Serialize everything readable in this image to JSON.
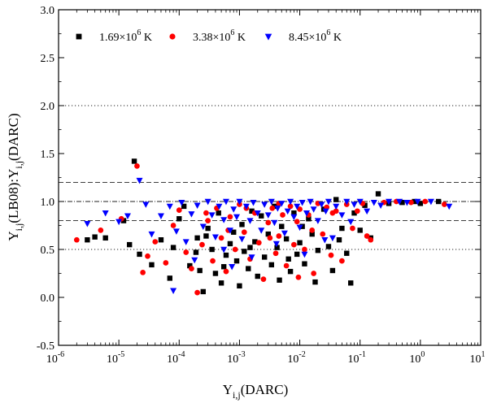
{
  "chart_data": {
    "type": "scatter",
    "x_scale": "log",
    "y_scale": "linear",
    "xlim": [
      1e-06,
      10
    ],
    "ylim": [
      -0.5,
      3.0
    ],
    "xlabel": {
      "main": "Υ",
      "sub": "i,j",
      "tail": "(DARC)"
    },
    "ylabel": {
      "a": "Υ",
      "a_sub": "i,j",
      "b": "(LB08):Υ",
      "b_sub": "i,j",
      "c": "(DARC)"
    },
    "x_ticks": [
      {
        "base": "10",
        "exp": "-6",
        "value": 1e-06
      },
      {
        "base": "10",
        "exp": "-5",
        "value": 1e-05
      },
      {
        "base": "10",
        "exp": "-4",
        "value": 0.0001
      },
      {
        "base": "10",
        "exp": "-3",
        "value": 0.001
      },
      {
        "base": "10",
        "exp": "-2",
        "value": 0.01
      },
      {
        "base": "10",
        "exp": "-1",
        "value": 0.1
      },
      {
        "base": "10",
        "exp": "0",
        "value": 1
      },
      {
        "base": "10",
        "exp": "1",
        "value": 10
      }
    ],
    "y_ticks": [
      "-0.5",
      "0.0",
      "0.5",
      "1.0",
      "1.5",
      "2.0",
      "2.5",
      "3.0"
    ],
    "reference_lines": [
      {
        "y": 2.0,
        "style": "dotted"
      },
      {
        "y": 1.2,
        "style": "dashed"
      },
      {
        "y": 1.0,
        "style": "dash-dot"
      },
      {
        "y": 0.8,
        "style": "dashed"
      },
      {
        "y": 0.5,
        "style": "dotted"
      }
    ],
    "legend_position": "top-left",
    "series": [
      {
        "name": "1.69×10^6 K",
        "legend": {
          "mant": "1.69×10",
          "exp": "6",
          "unit": " K"
        },
        "marker": "square",
        "color": "#000000",
        "points": [
          [
            1.8e-05,
            1.42
          ],
          [
            3e-06,
            0.6
          ],
          [
            4e-06,
            0.63
          ],
          [
            6e-06,
            0.62
          ],
          [
            1.2e-05,
            0.8
          ],
          [
            1.5e-05,
            0.55
          ],
          [
            2.2e-05,
            0.45
          ],
          [
            3.5e-05,
            0.34
          ],
          [
            5e-05,
            0.6
          ],
          [
            7e-05,
            0.2
          ],
          [
            8e-05,
            0.52
          ],
          [
            0.0001,
            0.82
          ],
          [
            0.00012,
            0.95
          ],
          [
            0.00015,
            0.33
          ],
          [
            0.0002,
            0.62
          ],
          [
            0.00022,
            0.28
          ],
          [
            0.00025,
            0.06
          ],
          [
            0.0003,
            0.72
          ],
          [
            0.00035,
            0.5
          ],
          [
            0.0004,
            0.25
          ],
          [
            0.00045,
            0.88
          ],
          [
            0.0005,
            0.15
          ],
          [
            0.00055,
            0.32
          ],
          [
            0.0006,
            0.44
          ],
          [
            0.0007,
            0.56
          ],
          [
            0.0008,
            0.68
          ],
          [
            0.0009,
            0.38
          ],
          [
            0.001,
            0.12
          ],
          [
            0.0011,
            0.76
          ],
          [
            0.0012,
            0.48
          ],
          [
            0.0014,
            0.3
          ],
          [
            0.0016,
            0.9
          ],
          [
            0.0018,
            0.58
          ],
          [
            0.002,
            0.22
          ],
          [
            0.0023,
            0.85
          ],
          [
            0.0026,
            0.42
          ],
          [
            0.003,
            0.66
          ],
          [
            0.0034,
            0.34
          ],
          [
            0.0038,
            0.95
          ],
          [
            0.0042,
            0.52
          ],
          [
            0.0046,
            0.18
          ],
          [
            0.005,
            0.74
          ],
          [
            0.006,
            0.61
          ],
          [
            0.007,
            0.27
          ],
          [
            0.008,
            0.88
          ],
          [
            0.009,
            0.45
          ],
          [
            0.01,
            0.57
          ],
          [
            0.012,
            0.35
          ],
          [
            0.014,
            0.82
          ],
          [
            0.016,
            0.66
          ],
          [
            0.018,
            0.16
          ],
          [
            0.02,
            0.49
          ],
          [
            0.025,
            0.92
          ],
          [
            0.03,
            0.53
          ],
          [
            0.035,
            0.28
          ],
          [
            0.04,
            1.02
          ],
          [
            0.05,
            0.72
          ],
          [
            0.06,
            0.46
          ],
          [
            0.07,
            0.15
          ],
          [
            0.08,
            0.88
          ],
          [
            0.1,
            0.7
          ],
          [
            0.12,
            0.96
          ],
          [
            0.15,
            0.62
          ],
          [
            0.2,
            1.08
          ],
          [
            0.3,
            0.98
          ],
          [
            0.5,
            0.99
          ],
          [
            0.8,
            1.0
          ],
          [
            1.0,
            0.98
          ],
          [
            2.0,
            1.0
          ],
          [
            0.0065,
            0.4
          ],
          [
            0.00028,
            0.64
          ],
          [
            0.00019,
            0.47
          ],
          [
            0.0015,
            0.52
          ],
          [
            0.011,
            0.74
          ],
          [
            0.045,
            0.6
          ]
        ]
      },
      {
        "name": "3.38×10^6 K",
        "legend": {
          "mant": "3.38×10",
          "exp": "6",
          "unit": " K"
        },
        "marker": "circle",
        "color": "#ff0000",
        "points": [
          [
            2e-06,
            0.6
          ],
          [
            5e-06,
            0.7
          ],
          [
            1.1e-05,
            0.82
          ],
          [
            2e-05,
            1.37
          ],
          [
            2.5e-05,
            0.26
          ],
          [
            3e-05,
            0.43
          ],
          [
            4e-05,
            0.58
          ],
          [
            6e-05,
            0.36
          ],
          [
            8e-05,
            0.75
          ],
          [
            0.0001,
            0.91
          ],
          [
            0.00013,
            0.47
          ],
          [
            0.00016,
            0.3
          ],
          [
            0.0002,
            0.05
          ],
          [
            0.00024,
            0.55
          ],
          [
            0.0003,
            0.8
          ],
          [
            0.00036,
            0.38
          ],
          [
            0.00042,
            0.93
          ],
          [
            0.0005,
            0.62
          ],
          [
            0.0006,
            0.27
          ],
          [
            0.0007,
            0.84
          ],
          [
            0.00085,
            0.5
          ],
          [
            0.001,
            0.97
          ],
          [
            0.0012,
            0.68
          ],
          [
            0.0015,
            0.4
          ],
          [
            0.0018,
            0.88
          ],
          [
            0.0021,
            0.57
          ],
          [
            0.0025,
            0.19
          ],
          [
            0.003,
            0.78
          ],
          [
            0.0035,
            0.93
          ],
          [
            0.004,
            0.46
          ],
          [
            0.0045,
            0.64
          ],
          [
            0.0052,
            0.86
          ],
          [
            0.006,
            0.33
          ],
          [
            0.007,
            0.95
          ],
          [
            0.008,
            0.55
          ],
          [
            0.009,
            0.79
          ],
          [
            0.01,
            0.92
          ],
          [
            0.012,
            0.5
          ],
          [
            0.014,
            0.86
          ],
          [
            0.017,
            0.25
          ],
          [
            0.02,
            0.98
          ],
          [
            0.024,
            0.66
          ],
          [
            0.028,
            0.94
          ],
          [
            0.033,
            0.44
          ],
          [
            0.04,
            0.9
          ],
          [
            0.05,
            0.38
          ],
          [
            0.06,
            0.97
          ],
          [
            0.075,
            0.72
          ],
          [
            0.09,
            0.9
          ],
          [
            0.11,
            0.98
          ],
          [
            0.15,
            0.6
          ],
          [
            0.25,
            0.99
          ],
          [
            0.4,
            1.0
          ],
          [
            0.7,
            0.99
          ],
          [
            1.2,
            1.0
          ],
          [
            2.5,
            0.97
          ],
          [
            0.0095,
            0.21
          ],
          [
            0.00065,
            0.7
          ],
          [
            0.0032,
            0.62
          ],
          [
            0.016,
            0.7
          ],
          [
            0.13,
            0.64
          ],
          [
            0.035,
            0.88
          ],
          [
            0.0045,
            0.98
          ],
          [
            0.0013,
            0.93
          ],
          [
            0.00028,
            0.88
          ]
        ]
      },
      {
        "name": "8.45×10^6 K",
        "legend": {
          "mant": "8.45×10",
          "exp": "6",
          "unit": " K"
        },
        "marker": "triangle-down",
        "color": "#0000ff",
        "points": [
          [
            3e-06,
            0.77
          ],
          [
            6e-06,
            0.88
          ],
          [
            1e-05,
            0.79
          ],
          [
            1.4e-05,
            0.85
          ],
          [
            2.2e-05,
            1.22
          ],
          [
            2.8e-05,
            0.97
          ],
          [
            3.5e-05,
            0.66
          ],
          [
            5e-05,
            0.85
          ],
          [
            7e-05,
            0.95
          ],
          [
            8e-05,
            0.07
          ],
          [
            9e-05,
            0.69
          ],
          [
            0.00011,
            0.99
          ],
          [
            0.00013,
            0.58
          ],
          [
            0.00016,
            0.87
          ],
          [
            0.0002,
            0.96
          ],
          [
            0.00025,
            0.74
          ],
          [
            0.0003,
            1.0
          ],
          [
            0.00035,
            0.86
          ],
          [
            0.0004,
            0.63
          ],
          [
            0.00046,
            0.95
          ],
          [
            0.00055,
            0.81
          ],
          [
            0.0006,
            1.0
          ],
          [
            0.0007,
            0.7
          ],
          [
            0.0008,
            0.92
          ],
          [
            0.0009,
            0.84
          ],
          [
            0.001,
            1.0
          ],
          [
            0.0011,
            0.61
          ],
          [
            0.0013,
            0.95
          ],
          [
            0.0015,
            0.8
          ],
          [
            0.0017,
            0.99
          ],
          [
            0.002,
            0.88
          ],
          [
            0.0023,
            0.7
          ],
          [
            0.0026,
            0.97
          ],
          [
            0.003,
            0.86
          ],
          [
            0.0034,
            1.0
          ],
          [
            0.0038,
            0.78
          ],
          [
            0.0043,
            0.93
          ],
          [
            0.005,
            0.98
          ],
          [
            0.0056,
            0.67
          ],
          [
            0.0063,
            0.9
          ],
          [
            0.007,
            1.0
          ],
          [
            0.008,
            0.84
          ],
          [
            0.009,
            0.95
          ],
          [
            0.01,
            0.73
          ],
          [
            0.011,
            0.99
          ],
          [
            0.013,
            0.88
          ],
          [
            0.015,
            1.0
          ],
          [
            0.017,
            0.92
          ],
          [
            0.02,
            0.8
          ],
          [
            0.023,
            0.97
          ],
          [
            0.027,
            0.9
          ],
          [
            0.03,
            1.0
          ],
          [
            0.035,
            0.62
          ],
          [
            0.04,
            0.95
          ],
          [
            0.05,
            0.86
          ],
          [
            0.06,
            1.0
          ],
          [
            0.07,
            0.79
          ],
          [
            0.08,
            0.97
          ],
          [
            0.1,
            1.0
          ],
          [
            0.13,
            0.9
          ],
          [
            0.17,
            0.99
          ],
          [
            0.22,
            0.96
          ],
          [
            0.3,
            1.0
          ],
          [
            0.45,
            1.0
          ],
          [
            0.6,
            0.99
          ],
          [
            0.9,
            1.0
          ],
          [
            1.5,
            1.0
          ],
          [
            3.0,
            0.95
          ],
          [
            0.0016,
            0.42
          ],
          [
            0.00075,
            0.32
          ],
          [
            0.0041,
            0.56
          ],
          [
            0.012,
            0.45
          ],
          [
            0.026,
            0.6
          ],
          [
            0.00018,
            0.39
          ],
          [
            0.00055,
            0.5
          ]
        ]
      }
    ]
  }
}
